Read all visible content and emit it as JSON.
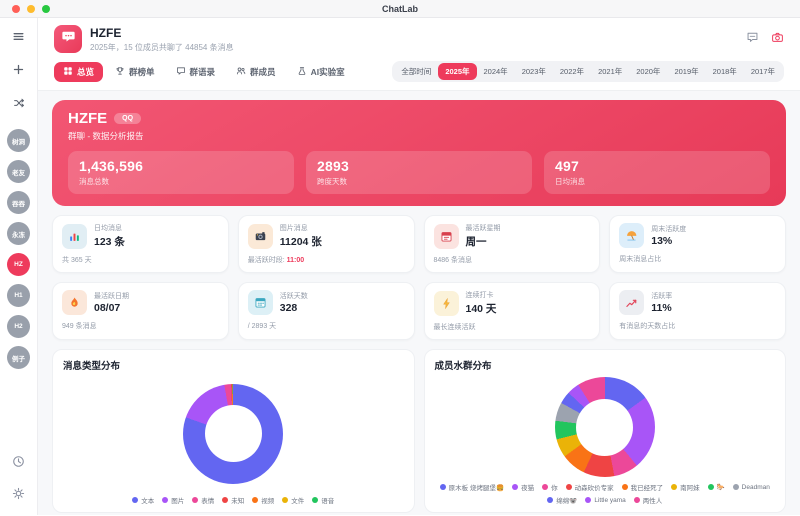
{
  "colors": {
    "accent": "#ee3b5c"
  },
  "titlebar": {
    "title": "ChatLab"
  },
  "sidebar": {
    "avatars": [
      {
        "label": "树洞",
        "active": false
      },
      {
        "label": "老友",
        "active": false
      },
      {
        "label": "吞吞",
        "active": false
      },
      {
        "label": "永冻",
        "active": false
      },
      {
        "label": "HZ",
        "active": true
      },
      {
        "label": "H1",
        "active": false
      },
      {
        "label": "H2",
        "active": false
      },
      {
        "label": "例子",
        "active": false
      }
    ]
  },
  "header": {
    "group_name": "HZFE",
    "group_subtitle": "2025年，15 位成员共聊了 44854 条消息",
    "tabs": [
      {
        "label": "总览",
        "icon": "overview-icon",
        "active": true
      },
      {
        "label": "群榜单",
        "icon": "trophy-icon",
        "active": false
      },
      {
        "label": "群语录",
        "icon": "quote-icon",
        "active": false
      },
      {
        "label": "群成员",
        "icon": "members-icon",
        "active": false
      },
      {
        "label": "AI实验室",
        "icon": "flask-icon",
        "active": false
      }
    ],
    "filters": [
      "全部时间",
      "2025年",
      "2024年",
      "2023年",
      "2022年",
      "2021年",
      "2020年",
      "2019年",
      "2018年",
      "2017年"
    ],
    "active_filter": "2025年"
  },
  "hero": {
    "name": "HZFE",
    "badge": "QQ",
    "subtitle": "群聊 - 数据分析报告",
    "stats": [
      {
        "value": "1,436,596",
        "label": "消息总数"
      },
      {
        "value": "2893",
        "label": "跨度天数"
      },
      {
        "value": "497",
        "label": "日均消息"
      }
    ]
  },
  "cards": [
    {
      "title": "日均消息",
      "value": "123 条",
      "footer": "共 365 天",
      "icon": "bar-chart-icon",
      "icon_bg": "#e1eef4"
    },
    {
      "title": "图片消息",
      "value": "11204 张",
      "footer": "最活跃时段: ",
      "footer_highlight": "11:00",
      "icon": "camera-icon",
      "icon_bg": "#fbe9d7"
    },
    {
      "title": "最活跃星期",
      "value": "周一",
      "footer": "8486 条消息",
      "icon": "calendar-red-icon",
      "icon_bg": "#fbe3e0"
    },
    {
      "title": "周末活跃度",
      "value": "13%",
      "footer": "周末消息占比",
      "icon": "beach-umbrella-icon",
      "icon_bg": "#ddeefa"
    },
    {
      "title": "最活跃日期",
      "value": "08/07",
      "footer": "949 条消息",
      "icon": "fire-icon",
      "icon_bg": "#fbe7da"
    },
    {
      "title": "活跃天数",
      "value": "328",
      "footer": "/ 2893 天",
      "icon": "calendar-teal-icon",
      "icon_bg": "#ddf0f6"
    },
    {
      "title": "连续打卡",
      "value": "140 天",
      "footer": "最长连续活跃",
      "icon": "bolt-icon",
      "icon_bg": "#fbf2d9"
    },
    {
      "title": "活跃率",
      "value": "11%",
      "footer": "有消息的天数占比",
      "icon": "trend-icon",
      "icon_bg": "#eceef2"
    }
  ],
  "chart_data": [
    {
      "type": "pie",
      "donut": true,
      "title": "消息类型分布",
      "labels": [
        "文本",
        "图片",
        "表情",
        "未知",
        "视频",
        "文件",
        "语音"
      ],
      "values": [
        80.4,
        16.8,
        2.2,
        0.3,
        0.1,
        0.1,
        0.1
      ],
      "colors": [
        "#6366f1",
        "#a855f7",
        "#ec4899",
        "#ef4444",
        "#f97316",
        "#eab308",
        "#22c55e"
      ],
      "legend_position": "bottom"
    },
    {
      "type": "pie",
      "donut": true,
      "title": "成员水群分布",
      "labels": [
        "原木板 烧烤腿堡🍔",
        "夜猫",
        "你",
        "动森砍价专家",
        "我已经死了",
        "南阿妹",
        "🐎",
        "Deadman",
        "绵绵🐨",
        "Little yama",
        "两性人"
      ],
      "values": [
        15,
        24,
        8,
        10,
        8,
        6,
        6,
        6,
        4,
        4,
        9
      ],
      "colors": [
        "#6366f1",
        "#a855f7",
        "#ec4899",
        "#ef4444",
        "#f97316",
        "#eab308",
        "#22c55e",
        "#9ca3af",
        "#6366f1",
        "#a855f7",
        "#ec4899"
      ],
      "legend_position": "bottom"
    }
  ]
}
